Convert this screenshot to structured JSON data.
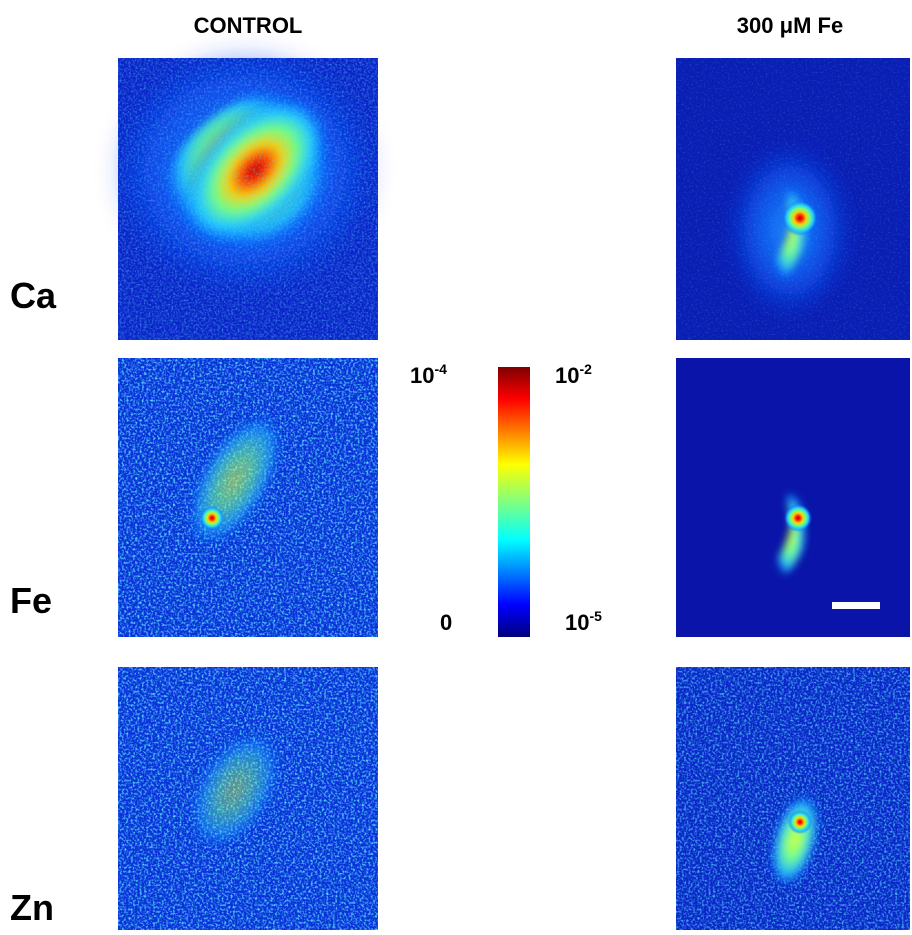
{
  "header": {
    "columns": [
      "CONTROL",
      "300 μM Fe"
    ]
  },
  "rows": [
    "Ca",
    "Fe",
    "Zn"
  ],
  "colorbar": {
    "left_top": {
      "base": "10",
      "exponent": "-4"
    },
    "right_top": {
      "base": "10",
      "exponent": "-2"
    },
    "left_bottom": "0",
    "right_bottom": {
      "base": "10",
      "exponent": "-5"
    }
  }
}
